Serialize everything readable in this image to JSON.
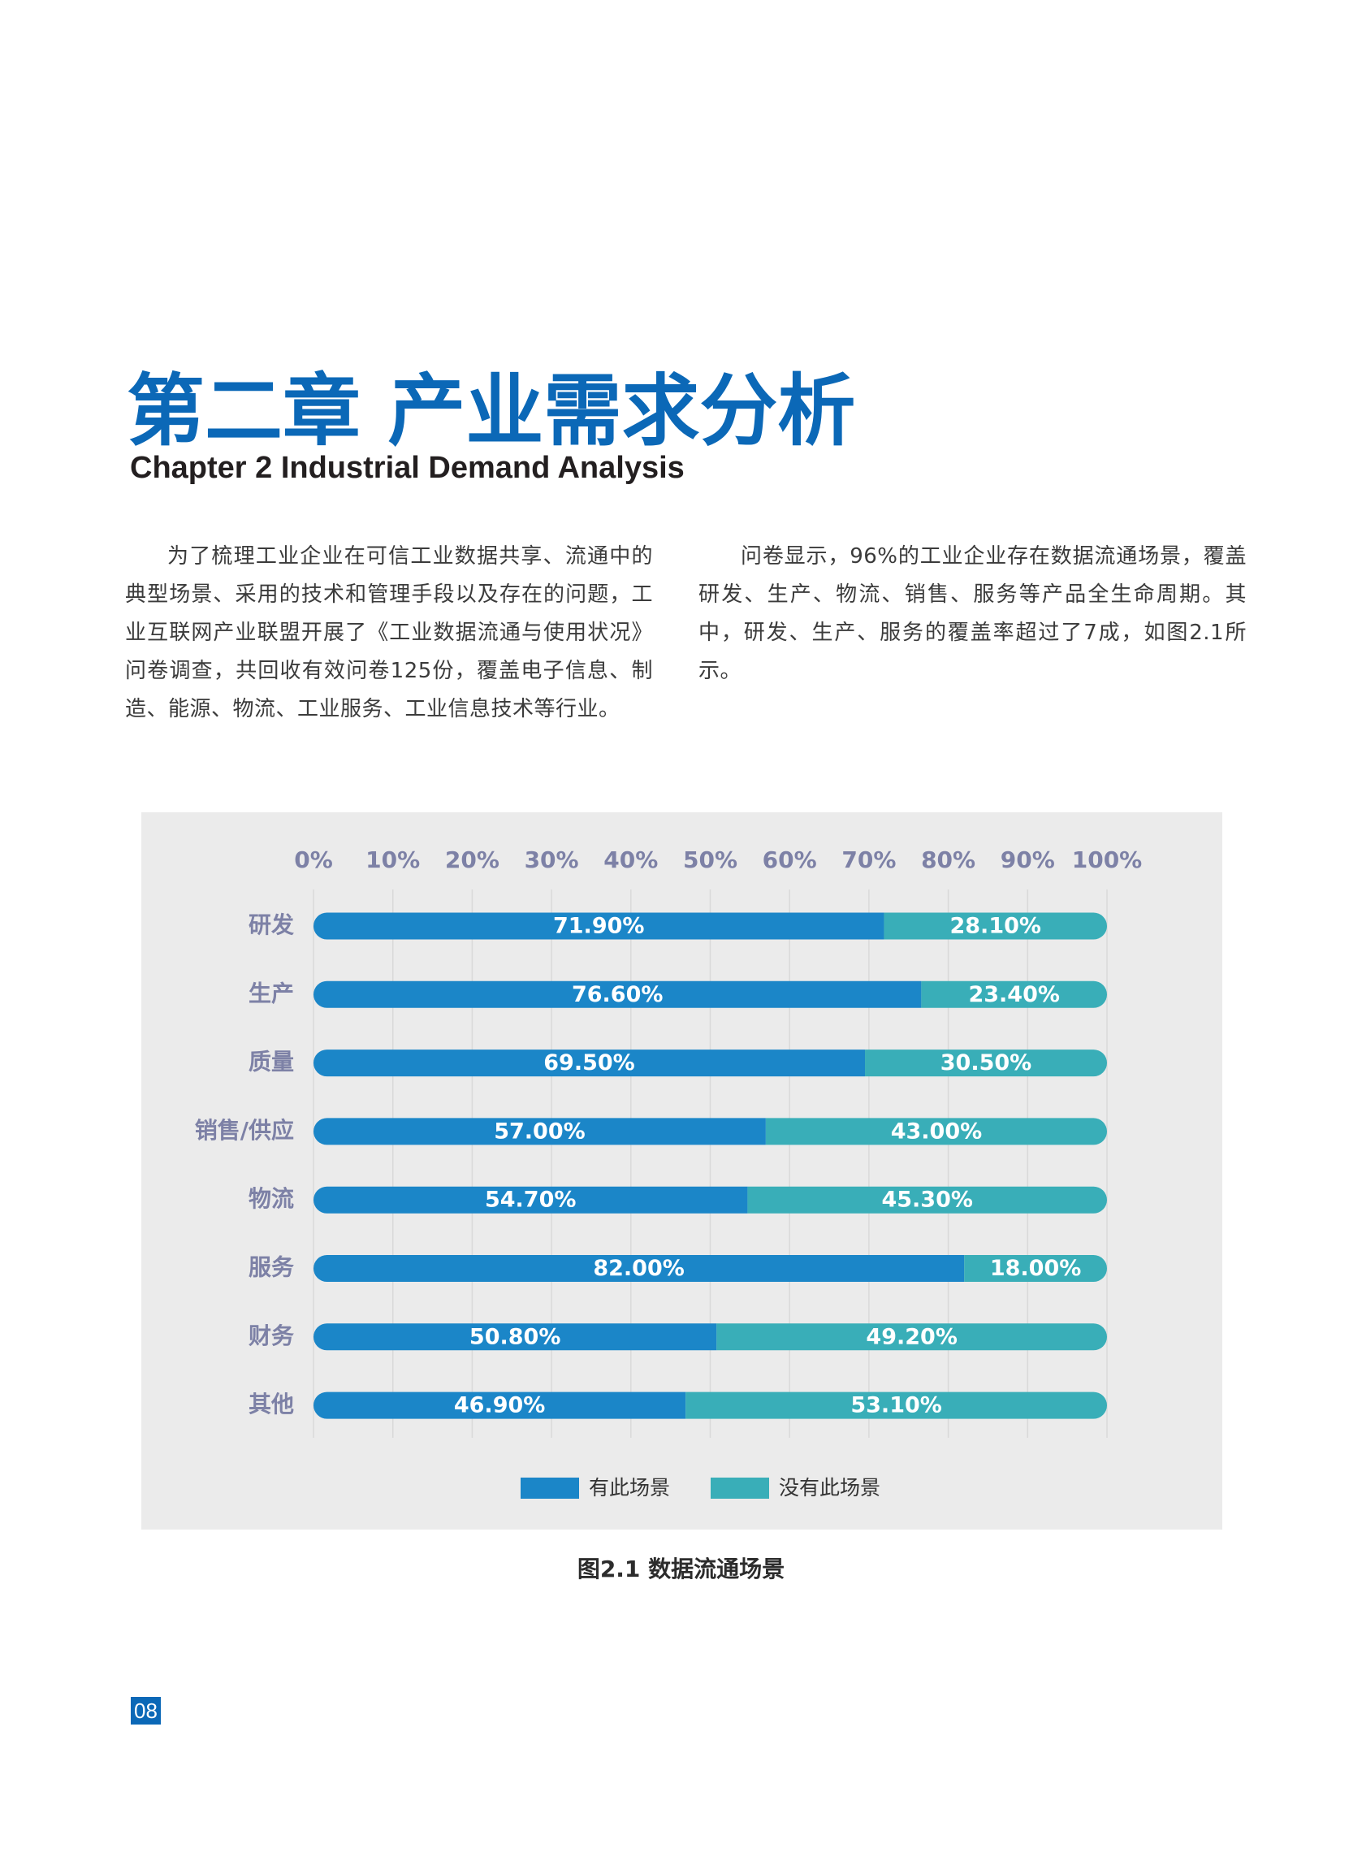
{
  "chapter": {
    "title": "第二章 产业需求分析",
    "subtitle": "Chapter 2 Industrial Demand Analysis"
  },
  "intro": {
    "left_paragraph": "为了梳理工业企业在可信工业数据共享、流通中的典型场景、采用的技术和管理手段以及存在的问题，工业互联网产业联盟开展了《工业数据流通与使用状况》问卷调查，共回收有效问卷125份，覆盖电子信息、制造、能源、物流、工业服务、工业信息技术等行业。",
    "right_paragraph": "问卷显示，96%的工业企业存在数据流通场景，覆盖研发、生产、物流、销售、服务等产品全生命周期。其中，研发、生产、服务的覆盖率超过了7成，如图2.1所示。"
  },
  "figure": {
    "caption": "图2.1 数据流通场景"
  },
  "page": {
    "number": "08"
  },
  "colors": {
    "brand": "#0b68b7",
    "series_has": "#1b86c8",
    "series_not": "#39aeb8",
    "axis_text": "#7d81a6",
    "panel": "#ebebeb"
  },
  "chart_data": {
    "type": "bar",
    "orientation": "horizontal",
    "stacked": true,
    "categories": [
      "研发",
      "生产",
      "质量",
      "销售/供应",
      "物流",
      "服务",
      "财务",
      "其他"
    ],
    "series": [
      {
        "name": "有此场景",
        "values": [
          71.9,
          76.6,
          69.5,
          57.0,
          54.7,
          82.0,
          50.8,
          46.9
        ],
        "labels": [
          "71.90%",
          "76.60%",
          "69.50%",
          "57.00%",
          "54.70%",
          "82.00%",
          "50.80%",
          "46.90%"
        ],
        "color": "#1b86c8"
      },
      {
        "name": "没有此场景",
        "values": [
          28.1,
          23.4,
          30.5,
          43.0,
          45.3,
          18.0,
          49.2,
          53.1
        ],
        "labels": [
          "28.10%",
          "23.40%",
          "30.50%",
          "43.00%",
          "45.30%",
          "18.00%",
          "49.20%",
          "53.10%"
        ],
        "color": "#39aeb8"
      }
    ],
    "x_ticks": [
      "0%",
      "10%",
      "20%",
      "30%",
      "40%",
      "50%",
      "60%",
      "70%",
      "80%",
      "90%",
      "100%"
    ],
    "xlim": [
      0,
      100
    ],
    "x_axis_position": "top",
    "grid": true,
    "legend_position": "bottom-center"
  }
}
